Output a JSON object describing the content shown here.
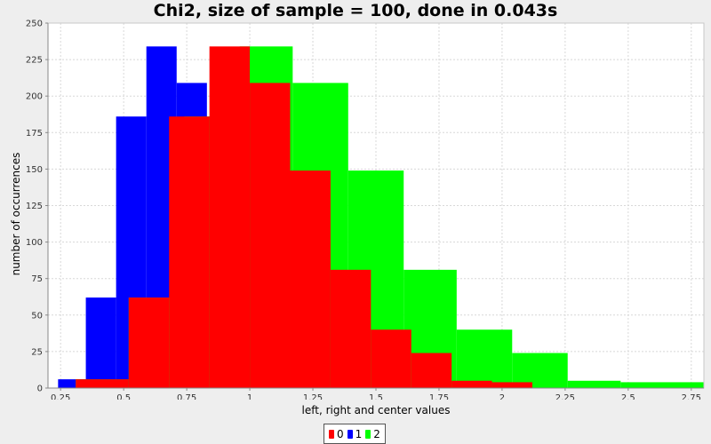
{
  "chart_data": {
    "type": "bar",
    "title": "Chi2, size of sample = 100, done in 0.043s",
    "xlabel": "left, right and center values",
    "ylabel": "number of occurrences",
    "xlim": [
      0.2,
      2.8
    ],
    "ylim": [
      0,
      250
    ],
    "xticks": [
      "0.25",
      "0.5",
      "0.75",
      "1",
      "1.25",
      "1.5",
      "1.75",
      "2",
      "2.25",
      "2.5",
      "2.75"
    ],
    "yticks": [
      "0",
      "25",
      "50",
      "75",
      "100",
      "125",
      "150",
      "175",
      "200",
      "225",
      "250"
    ],
    "grid": true,
    "legend_position": "bottom-center",
    "series": [
      {
        "name": "1",
        "color": "#0000ff",
        "bins": [
          {
            "x0": 0.24,
            "x1": 0.35,
            "y": 6
          },
          {
            "x0": 0.35,
            "x1": 0.47,
            "y": 62
          },
          {
            "x0": 0.47,
            "x1": 0.59,
            "y": 186
          },
          {
            "x0": 0.59,
            "x1": 0.71,
            "y": 234
          },
          {
            "x0": 0.71,
            "x1": 0.83,
            "y": 209
          },
          {
            "x0": 0.83,
            "x1": 0.95,
            "y": 149
          },
          {
            "x0": 0.95,
            "x1": 1.07,
            "y": 81
          },
          {
            "x0": 1.07,
            "x1": 1.19,
            "y": 40
          },
          {
            "x0": 1.19,
            "x1": 1.31,
            "y": 24
          },
          {
            "x0": 1.31,
            "x1": 1.43,
            "y": 5
          },
          {
            "x0": 1.43,
            "x1": 1.55,
            "y": 4
          }
        ]
      },
      {
        "name": "2",
        "color": "#00ff00",
        "bins": [
          {
            "x0": 0.31,
            "x1": 0.52,
            "y": 6
          },
          {
            "x0": 0.52,
            "x1": 0.74,
            "y": 62
          },
          {
            "x0": 0.74,
            "x1": 0.96,
            "y": 186
          },
          {
            "x0": 0.96,
            "x1": 1.17,
            "y": 234
          },
          {
            "x0": 1.17,
            "x1": 1.39,
            "y": 209
          },
          {
            "x0": 1.39,
            "x1": 1.61,
            "y": 149
          },
          {
            "x0": 1.61,
            "x1": 1.82,
            "y": 81
          },
          {
            "x0": 1.82,
            "x1": 2.04,
            "y": 40
          },
          {
            "x0": 2.04,
            "x1": 2.26,
            "y": 24
          },
          {
            "x0": 2.26,
            "x1": 2.47,
            "y": 5
          },
          {
            "x0": 2.47,
            "x1": 2.8,
            "y": 4
          }
        ]
      },
      {
        "name": "0",
        "color": "#ff0000",
        "bins": [
          {
            "x0": 0.31,
            "x1": 0.52,
            "y": 6
          },
          {
            "x0": 0.52,
            "x1": 0.68,
            "y": 62
          },
          {
            "x0": 0.68,
            "x1": 0.84,
            "y": 186
          },
          {
            "x0": 0.84,
            "x1": 1.0,
            "y": 234
          },
          {
            "x0": 1.0,
            "x1": 1.16,
            "y": 209
          },
          {
            "x0": 1.16,
            "x1": 1.32,
            "y": 149
          },
          {
            "x0": 1.32,
            "x1": 1.48,
            "y": 81
          },
          {
            "x0": 1.48,
            "x1": 1.64,
            "y": 40
          },
          {
            "x0": 1.64,
            "x1": 1.8,
            "y": 24
          },
          {
            "x0": 1.8,
            "x1": 1.96,
            "y": 5
          },
          {
            "x0": 1.96,
            "x1": 2.12,
            "y": 4
          }
        ]
      }
    ],
    "legend": [
      {
        "label": "0",
        "color": "#ff0000"
      },
      {
        "label": "1",
        "color": "#0000ff"
      },
      {
        "label": "2",
        "color": "#00ff00"
      }
    ]
  }
}
